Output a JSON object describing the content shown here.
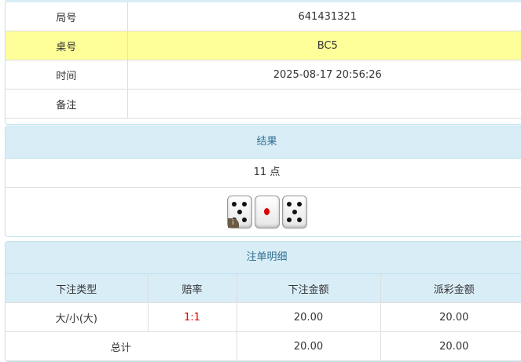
{
  "info": {
    "rows": [
      {
        "label": "局号",
        "value": "641431321"
      },
      {
        "label": "桌号",
        "value": "BC5"
      },
      {
        "label": "时间",
        "value": "2025-08-17 20:56:26"
      },
      {
        "label": "备注",
        "value": ""
      }
    ],
    "highlight_color": "#ffff99"
  },
  "result": {
    "title": "结果",
    "points": "11 点",
    "dice": [
      5,
      1,
      5
    ],
    "info_icon": "i"
  },
  "bets": {
    "title": "注单明细",
    "headers": [
      "下注类型",
      "赔率",
      "下注金额",
      "派彩金额"
    ],
    "rows": [
      {
        "type": "大/小(大)",
        "odds": "1:1",
        "amount": "20.00",
        "payout": "20.00"
      }
    ],
    "total": {
      "label": "总计",
      "amount": "20.00",
      "payout": "20.00"
    },
    "odds_color": "#e00000"
  }
}
